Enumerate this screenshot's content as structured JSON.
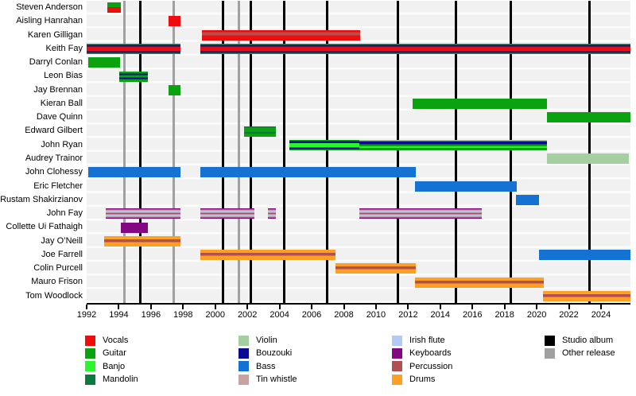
{
  "chart_data": {
    "type": "timeline",
    "title": "Band members timeline (no on-screen title)",
    "axis": {
      "start": 1992,
      "end": 2025.83,
      "tick_years": [
        1992,
        1994,
        1996,
        1998,
        2000,
        2002,
        2004,
        2006,
        2008,
        2010,
        2012,
        2014,
        2016,
        2018,
        2020,
        2022,
        2024
      ]
    },
    "members": [
      {
        "name": "Steven Anderson",
        "bars": [
          {
            "from": 1993.29,
            "to": 1994.13,
            "pattern": "guitar_over_vocals"
          }
        ]
      },
      {
        "name": "Aisling Hanrahan",
        "bars": [
          {
            "from": 1997.09,
            "to": 1997.84,
            "pattern": "vocals"
          }
        ]
      },
      {
        "name": "Karen Gilligan",
        "bars": [
          {
            "from": 1999.17,
            "to": 2009.01,
            "pattern": "vocals_percussion"
          }
        ]
      },
      {
        "name": "Keith Fay",
        "bars": [
          {
            "from": 1992.0,
            "to": 1997.84,
            "pattern": "keith_multi"
          },
          {
            "from": 1999.07,
            "to": 2025.83,
            "pattern": "keith_multi"
          }
        ]
      },
      {
        "name": "Darryl Conlan",
        "bars": [
          {
            "from": 1992.1,
            "to": 1994.08,
            "pattern": "guitar"
          }
        ]
      },
      {
        "name": "Leon Bias",
        "bars": [
          {
            "from": 1994.03,
            "to": 1995.81,
            "pattern": "guitar_bouzouki"
          }
        ]
      },
      {
        "name": "Jay Brennan",
        "bars": [
          {
            "from": 1997.09,
            "to": 1997.84,
            "pattern": "guitar"
          }
        ]
      },
      {
        "name": "Kieran Ball",
        "bars": [
          {
            "from": 2012.28,
            "to": 2020.63,
            "pattern": "guitar"
          }
        ]
      },
      {
        "name": "Dave Quinn",
        "bars": [
          {
            "from": 2020.63,
            "to": 2025.83,
            "pattern": "guitar"
          }
        ]
      },
      {
        "name": "Edward Gilbert",
        "bars": [
          {
            "from": 2001.79,
            "to": 2003.77,
            "pattern": "guitar_mandolin"
          }
        ]
      },
      {
        "name": "John Ryan",
        "bars": [
          {
            "from": 2004.61,
            "to": 2008.96,
            "pattern": "ryan_banjo"
          },
          {
            "from": 2008.96,
            "to": 2020.63,
            "pattern": "ryan_multi"
          }
        ]
      },
      {
        "name": "Audrey Trainor",
        "bars": [
          {
            "from": 2020.63,
            "to": 2025.73,
            "pattern": "violin"
          }
        ]
      },
      {
        "name": "John Clohessy",
        "bars": [
          {
            "from": 1992.1,
            "to": 1997.84,
            "pattern": "bass"
          },
          {
            "from": 1999.07,
            "to": 2012.48,
            "pattern": "bass"
          }
        ]
      },
      {
        "name": "Eric Fletcher",
        "bars": [
          {
            "from": 2012.43,
            "to": 2018.76,
            "pattern": "bass"
          }
        ]
      },
      {
        "name": "Rustam Shakirzianov",
        "bars": [
          {
            "from": 2018.71,
            "to": 2020.14,
            "pattern": "bass"
          }
        ]
      },
      {
        "name": "John Fay",
        "bars": [
          {
            "from": 1993.19,
            "to": 1997.84,
            "pattern": "fay_multi"
          },
          {
            "from": 1999.07,
            "to": 2002.44,
            "pattern": "fay_multi"
          },
          {
            "from": 2003.28,
            "to": 2003.77,
            "pattern": "fay_multi"
          },
          {
            "from": 2008.96,
            "to": 2016.58,
            "pattern": "fay_multi"
          }
        ]
      },
      {
        "name": "Collette Ui Fathaigh",
        "bars": [
          {
            "from": 1994.13,
            "to": 1995.81,
            "pattern": "keyboards"
          }
        ]
      },
      {
        "name": "Jay O’Neill",
        "bars": [
          {
            "from": 1993.09,
            "to": 1997.84,
            "pattern": "drums_percussion"
          }
        ]
      },
      {
        "name": "Joe Farrell",
        "bars": [
          {
            "from": 1999.07,
            "to": 2007.48,
            "pattern": "drums_percussion"
          },
          {
            "from": 2020.14,
            "to": 2025.83,
            "pattern": "bass"
          }
        ]
      },
      {
        "name": "Colin Purcell",
        "bars": [
          {
            "from": 2007.48,
            "to": 2012.48,
            "pattern": "drums_percussion"
          }
        ]
      },
      {
        "name": "Mauro Frison",
        "bars": [
          {
            "from": 2012.43,
            "to": 2020.44,
            "pattern": "drums_percussion"
          }
        ]
      },
      {
        "name": "Tom Woodlock",
        "bars": [
          {
            "from": 2020.39,
            "to": 2025.83,
            "pattern": "drums_percussion"
          }
        ]
      }
    ],
    "releases": {
      "studio_album_years": [
        1995.36,
        2000.46,
        2002.19,
        2004.27,
        2006.94,
        2011.34,
        2014.95,
        2018.41,
        2023.26
      ],
      "other_release_years": [
        1994.37,
        1997.44,
        2001.45
      ]
    }
  },
  "colors": {
    "vocals": "#ee0c0c",
    "guitar": "#0aa30f",
    "banjo": "#2bf52b",
    "mandolin": "#0a7b3d",
    "violin": "#a5cfa0",
    "bouzouki": "#0b0b92",
    "bass": "#1473d2",
    "tin_whistle": "#c8a2a2",
    "irish_flute": "#b5c9f5",
    "keyboards": "#830683",
    "percussion": "#b05050",
    "drums": "#ffa024",
    "studio_album": "#000000",
    "other_release": "#a0a0a0"
  },
  "patterns": {
    "vocals": [
      [
        "vocals",
        0,
        1
      ]
    ],
    "guitar": [
      [
        "guitar",
        0,
        1
      ]
    ],
    "bass": [
      [
        "bass",
        0,
        1
      ]
    ],
    "violin": [
      [
        "violin",
        0,
        1
      ]
    ],
    "keyboards": [
      [
        "keyboards",
        0,
        1
      ]
    ],
    "guitar_over_vocals": [
      [
        "guitar",
        0,
        0.45
      ],
      [
        "vocals",
        0.45,
        1
      ]
    ],
    "vocals_percussion": [
      [
        "vocals",
        0,
        0.2
      ],
      [
        "percussion",
        0.2,
        0.5
      ],
      [
        "vocals",
        0.5,
        1
      ]
    ],
    "keith_multi": [
      [
        "guitar",
        0,
        0.11
      ],
      [
        "bouzouki",
        0.11,
        0.27
      ],
      [
        "vocals",
        0.27,
        0.73
      ],
      [
        "bouzouki",
        0.73,
        0.89
      ],
      [
        "guitar",
        0.89,
        1
      ]
    ],
    "guitar_bouzouki": [
      [
        "guitar",
        0,
        0.18
      ],
      [
        "bouzouki",
        0.18,
        0.36
      ],
      [
        "guitar",
        0.36,
        0.56
      ],
      [
        "bouzouki",
        0.56,
        0.74
      ],
      [
        "guitar",
        0.74,
        1
      ]
    ],
    "guitar_mandolin": [
      [
        "mandolin",
        0,
        0.12
      ],
      [
        "guitar",
        0.12,
        0.55
      ],
      [
        "mandolin",
        0.55,
        0.7
      ],
      [
        "guitar",
        0.7,
        1
      ]
    ],
    "ryan_banjo": [
      [
        "guitar",
        0,
        0.1
      ],
      [
        "bouzouki",
        0.1,
        0.3
      ],
      [
        "banjo",
        0.3,
        0.72
      ],
      [
        "bouzouki",
        0.72,
        0.9
      ],
      [
        "guitar",
        0.9,
        1
      ]
    ],
    "ryan_multi": [
      [
        "violin",
        0,
        0.12
      ],
      [
        "bouzouki",
        0.12,
        0.44
      ],
      [
        "guitar",
        0.44,
        0.62
      ],
      [
        "banjo",
        0.62,
        0.76
      ],
      [
        "guitar",
        0.76,
        1
      ]
    ],
    "fay_multi": [
      [
        "keyboards",
        0,
        0.1
      ],
      [
        "tin_whistle",
        0.1,
        0.26
      ],
      [
        "irish_flute",
        0.26,
        0.44
      ],
      [
        "percussion",
        0.44,
        0.58
      ],
      [
        "irish_flute",
        0.58,
        0.72
      ],
      [
        "tin_whistle",
        0.72,
        0.9
      ],
      [
        "keyboards",
        0.9,
        1
      ]
    ],
    "drums_percussion": [
      [
        "drums",
        0,
        0.3
      ],
      [
        "percussion",
        0.3,
        0.58
      ],
      [
        "drums",
        0.58,
        1
      ]
    ]
  },
  "legend": {
    "columns": [
      [
        {
          "label": "Vocals",
          "color": "vocals"
        },
        {
          "label": "Guitar",
          "color": "guitar"
        },
        {
          "label": "Banjo",
          "color": "banjo"
        },
        {
          "label": "Mandolin",
          "color": "mandolin"
        }
      ],
      [
        {
          "label": "Violin",
          "color": "violin"
        },
        {
          "label": "Bouzouki",
          "color": "bouzouki"
        },
        {
          "label": "Bass",
          "color": "bass"
        },
        {
          "label": "Tin whistle",
          "color": "tin_whistle"
        }
      ],
      [
        {
          "label": "Irish flute",
          "color": "irish_flute"
        },
        {
          "label": "Keyboards",
          "color": "keyboards"
        },
        {
          "label": "Percussion",
          "color": "percussion"
        },
        {
          "label": "Drums",
          "color": "drums"
        }
      ],
      [
        {
          "label": "Studio album",
          "color": "studio_album"
        },
        {
          "label": "Other release",
          "color": "other_release"
        }
      ]
    ]
  }
}
